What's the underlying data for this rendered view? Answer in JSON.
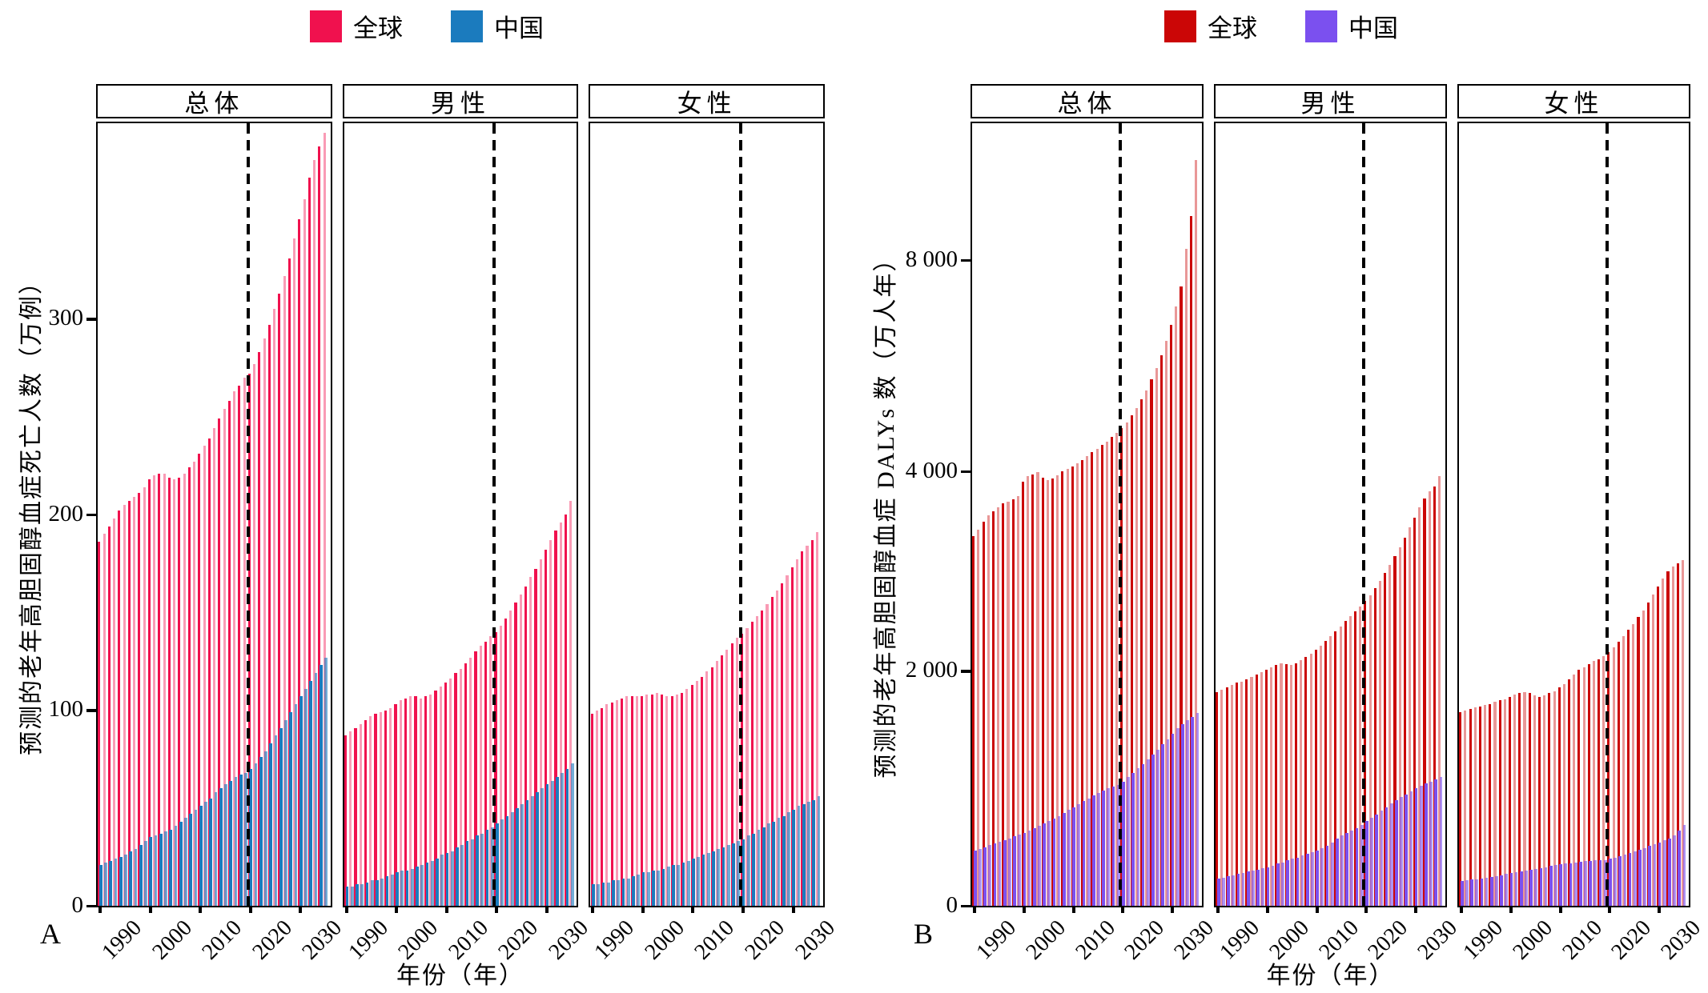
{
  "figure": {
    "years_start": 1990,
    "years_end": 2035,
    "halves": [
      {
        "panel_label": "A",
        "legend": [
          {
            "name": "全球",
            "color": "#F0114E"
          },
          {
            "name": "中国",
            "color": "#1B7BBE"
          }
        ],
        "y_axis_title": "预测的老年高胆固醇血症死亡人数（万例）",
        "x_axis_title": "年份（年）",
        "subpanel_titles": [
          "总体",
          "男性",
          "女性"
        ],
        "y_ticks": [
          {
            "label": "0",
            "value": 0
          },
          {
            "label": "100",
            "value": 100
          },
          {
            "label": "200",
            "value": 200
          },
          {
            "label": "300",
            "value": 300
          }
        ],
        "x_ticks": [
          1990,
          2000,
          2010,
          2020,
          2030
        ],
        "scale": {
          "type": "linear",
          "max": 400
        },
        "projection_divider_year": 2020
      },
      {
        "panel_label": "B",
        "legend": [
          {
            "name": "全球",
            "color": "#CB0606"
          },
          {
            "name": "中国",
            "color": "#7B50EF"
          }
        ],
        "y_axis_title": "预测的老年高胆固醇血症 DALYs 数（万人年）",
        "x_axis_title": "年份（年）",
        "subpanel_titles": [
          "总体",
          "男性",
          "女性"
        ],
        "y_ticks": [
          {
            "label": "0",
            "value": 0
          },
          {
            "label": "2 000",
            "value": 2000
          },
          {
            "label": "4 000",
            "value": 4000
          },
          {
            "label": "8 000",
            "value": 8000
          }
        ],
        "x_ticks": [
          1990,
          2000,
          2010,
          2020,
          2030
        ],
        "scale": {
          "type": "anchors",
          "anchors": [
            [
              0,
              0
            ],
            [
              2000,
              0.3
            ],
            [
              4000,
              0.555
            ],
            [
              8000,
              0.825
            ]
          ],
          "frac_per_doubling_above": 0.27
        },
        "projection_divider_year": 2020
      }
    ]
  },
  "chart_data": [
    {
      "panel": "A",
      "subpanel": "总体",
      "type": "bar",
      "title": "总体",
      "ylabel": "预测的老年高胆固醇血症死亡人数（万例）",
      "xlabel": "年份（年）",
      "x_range": [
        1990,
        2035
      ],
      "ylim": [
        0,
        400
      ],
      "yticks": [
        0,
        100,
        200,
        300
      ],
      "series": [
        {
          "name": "全球",
          "values": [
            186,
            190,
            194,
            198,
            202,
            205,
            207,
            209,
            211,
            214,
            218,
            220,
            221,
            221,
            219,
            218,
            219,
            221,
            224,
            227,
            231,
            235,
            239,
            244,
            249,
            254,
            258,
            263,
            266,
            270,
            272,
            277,
            283,
            290,
            297,
            305,
            313,
            322,
            331,
            341,
            351,
            361,
            372,
            381,
            388,
            395
          ]
        },
        {
          "name": "中国",
          "values": [
            21,
            22,
            23,
            24,
            25,
            26,
            28,
            29,
            31,
            33,
            35,
            36,
            37,
            38,
            39,
            41,
            43,
            45,
            47,
            49,
            51,
            53,
            55,
            58,
            60,
            62,
            64,
            66,
            67,
            68,
            70,
            73,
            76,
            79,
            83,
            87,
            91,
            95,
            99,
            103,
            107,
            111,
            115,
            119,
            123,
            127
          ]
        }
      ]
    },
    {
      "panel": "A",
      "subpanel": "男性",
      "type": "bar",
      "title": "男性",
      "x_range": [
        1990,
        2035
      ],
      "ylim": [
        0,
        400
      ],
      "series": [
        {
          "name": "全球",
          "values": [
            87,
            89,
            91,
            93,
            95,
            97,
            98,
            99,
            100,
            101,
            103,
            105,
            106,
            107,
            107,
            106,
            107,
            108,
            110,
            112,
            114,
            116,
            119,
            121,
            124,
            127,
            130,
            133,
            135,
            138,
            140,
            143,
            147,
            151,
            155,
            159,
            163,
            168,
            172,
            177,
            182,
            187,
            192,
            196,
            200,
            207
          ]
        },
        {
          "name": "中国",
          "values": [
            10,
            10,
            11,
            11,
            12,
            13,
            13,
            14,
            15,
            16,
            17,
            18,
            18,
            19,
            20,
            21,
            22,
            23,
            24,
            26,
            27,
            28,
            30,
            31,
            33,
            34,
            36,
            37,
            39,
            40,
            42,
            44,
            46,
            48,
            50,
            52,
            54,
            56,
            58,
            60,
            62,
            64,
            66,
            68,
            70,
            73
          ]
        }
      ]
    },
    {
      "panel": "A",
      "subpanel": "女性",
      "type": "bar",
      "title": "女性",
      "x_range": [
        1990,
        2035
      ],
      "ylim": [
        0,
        400
      ],
      "series": [
        {
          "name": "全球",
          "values": [
            98,
            100,
            101,
            103,
            104,
            105,
            106,
            107,
            107,
            107,
            107,
            108,
            108,
            109,
            108,
            107,
            107,
            108,
            109,
            111,
            113,
            115,
            117,
            120,
            122,
            125,
            128,
            131,
            134,
            137,
            139,
            142,
            145,
            148,
            151,
            154,
            158,
            161,
            165,
            169,
            173,
            177,
            181,
            184,
            187,
            191
          ]
        },
        {
          "name": "中国",
          "values": [
            11,
            11,
            12,
            12,
            13,
            13,
            14,
            14,
            15,
            16,
            17,
            17,
            18,
            18,
            19,
            20,
            21,
            21,
            22,
            23,
            24,
            25,
            26,
            27,
            28,
            29,
            30,
            31,
            32,
            33,
            34,
            36,
            37,
            39,
            40,
            42,
            43,
            45,
            46,
            48,
            49,
            51,
            52,
            53,
            54,
            56
          ]
        }
      ]
    },
    {
      "panel": "B",
      "subpanel": "总体",
      "type": "bar",
      "title": "总体",
      "ylabel": "预测的老年高胆固醇血症 DALYs 数（万人年）",
      "xlabel": "年份（年）",
      "x_range": [
        1990,
        2035
      ],
      "yticks": [
        0,
        2000,
        4000,
        8000
      ],
      "series": [
        {
          "name": "全球",
          "values": [
            3350,
            3420,
            3500,
            3560,
            3600,
            3640,
            3680,
            3700,
            3720,
            3750,
            3900,
            3950,
            3970,
            3990,
            3940,
            3910,
            3930,
            3960,
            4000,
            4050,
            4100,
            4160,
            4220,
            4290,
            4360,
            4430,
            4500,
            4570,
            4650,
            4730,
            4820,
            4930,
            5060,
            5200,
            5360,
            5540,
            5740,
            5960,
            6200,
            6470,
            6770,
            7120,
            7500,
            8300,
            9250,
            11100
          ]
        },
        {
          "name": "中国",
          "values": [
            470,
            485,
            500,
            515,
            530,
            545,
            560,
            575,
            590,
            605,
            620,
            640,
            660,
            680,
            700,
            720,
            740,
            765,
            790,
            815,
            840,
            865,
            890,
            915,
            940,
            960,
            980,
            1000,
            1015,
            1030,
            1060,
            1095,
            1130,
            1170,
            1210,
            1250,
            1290,
            1330,
            1375,
            1420,
            1465,
            1510,
            1550,
            1580,
            1610,
            1640
          ]
        }
      ]
    },
    {
      "panel": "B",
      "subpanel": "男性",
      "type": "bar",
      "title": "男性",
      "x_range": [
        1990,
        2035
      ],
      "yticks": [
        0,
        2000,
        4000,
        8000
      ],
      "series": [
        {
          "name": "全球",
          "values": [
            1820,
            1840,
            1860,
            1880,
            1900,
            1910,
            1930,
            1950,
            1970,
            1990,
            2010,
            2040,
            2060,
            2080,
            2070,
            2060,
            2080,
            2110,
            2140,
            2170,
            2210,
            2250,
            2300,
            2350,
            2400,
            2450,
            2500,
            2550,
            2600,
            2650,
            2700,
            2760,
            2830,
            2900,
            2980,
            3060,
            3150,
            3240,
            3340,
            3440,
            3540,
            3640,
            3730,
            3800,
            3850,
            3950
          ]
        },
        {
          "name": "中国",
          "values": [
            230,
            240,
            250,
            260,
            270,
            280,
            290,
            300,
            310,
            320,
            330,
            340,
            360,
            370,
            390,
            400,
            410,
            430,
            440,
            460,
            470,
            490,
            510,
            540,
            570,
            600,
            620,
            640,
            660,
            690,
            720,
            750,
            780,
            810,
            840,
            870,
            900,
            925,
            950,
            975,
            1000,
            1020,
            1040,
            1060,
            1080,
            1100
          ]
        }
      ]
    },
    {
      "panel": "B",
      "subpanel": "女性",
      "type": "bar",
      "title": "女性",
      "x_range": [
        1990,
        2035
      ],
      "yticks": [
        0,
        2000,
        4000,
        8000
      ],
      "series": [
        {
          "name": "全球",
          "values": [
            1650,
            1660,
            1680,
            1690,
            1700,
            1710,
            1720,
            1740,
            1750,
            1760,
            1780,
            1800,
            1810,
            1820,
            1810,
            1790,
            1780,
            1790,
            1810,
            1830,
            1860,
            1890,
            1930,
            1970,
            2010,
            2040,
            2070,
            2100,
            2120,
            2150,
            2190,
            2240,
            2290,
            2350,
            2410,
            2470,
            2540,
            2610,
            2690,
            2770,
            2850,
            2930,
            3000,
            3050,
            3080,
            3110
          ]
        },
        {
          "name": "中国",
          "values": [
            210,
            215,
            222,
            228,
            235,
            242,
            248,
            255,
            262,
            270,
            277,
            285,
            292,
            300,
            308,
            315,
            322,
            330,
            338,
            345,
            352,
            358,
            364,
            370,
            375,
            380,
            383,
            386,
            388,
            390,
            400,
            412,
            424,
            436,
            450,
            464,
            478,
            492,
            508,
            524,
            540,
            558,
            576,
            600,
            640,
            690
          ]
        }
      ]
    }
  ]
}
